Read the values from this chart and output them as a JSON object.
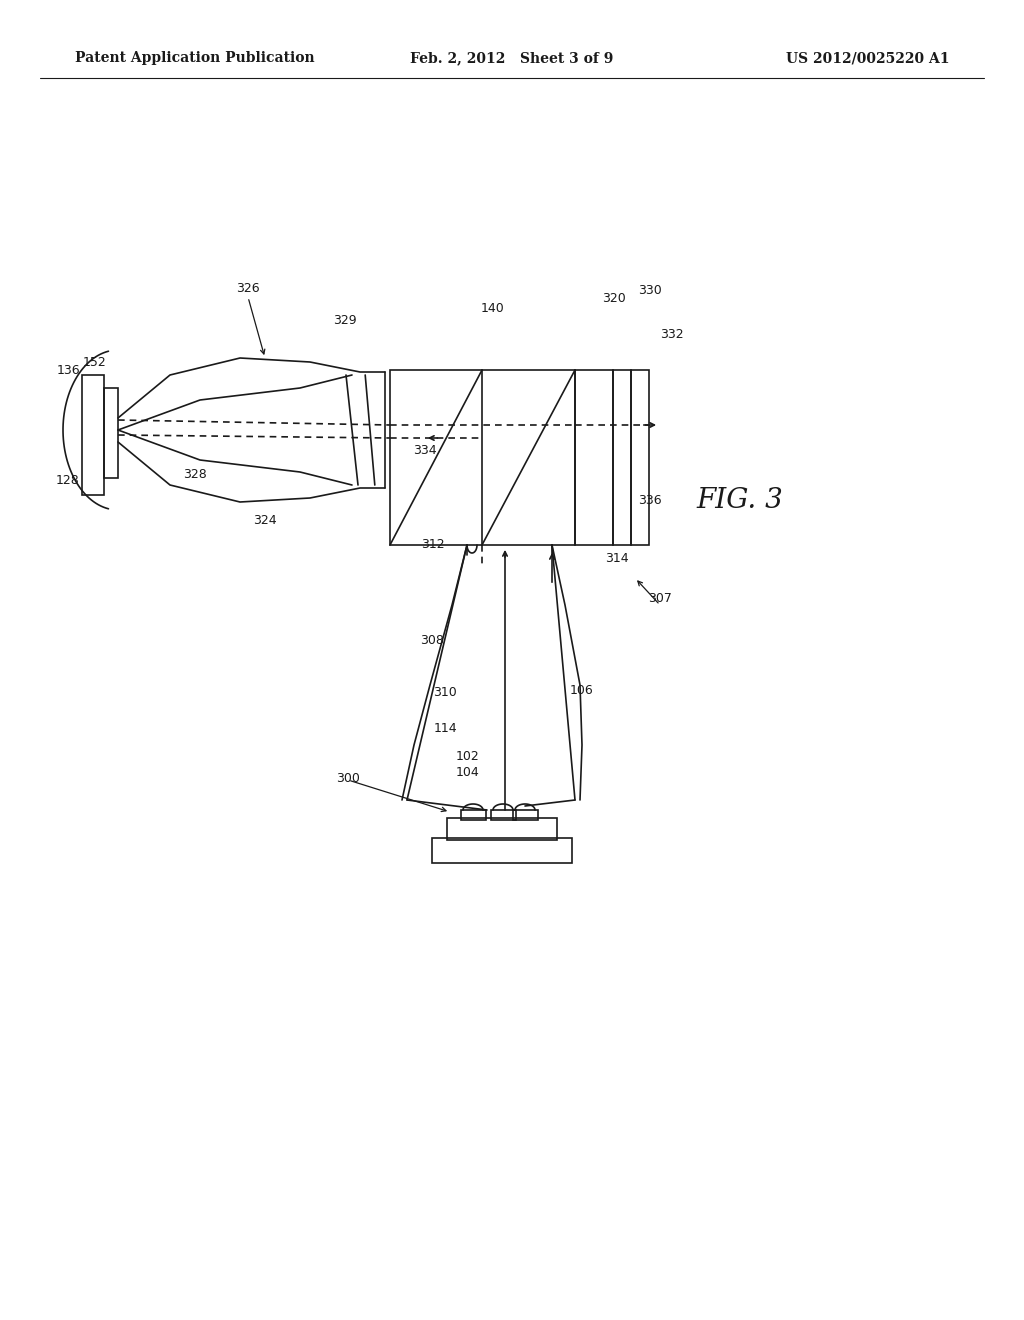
{
  "bg_color": "#ffffff",
  "line_color": "#1a1a1a",
  "header_left": "Patent Application Publication",
  "header_mid": "Feb. 2, 2012   Sheet 3 of 9",
  "header_right": "US 2012/0025220 A1",
  "fig_label": "FIG. 3",
  "lw": 1.2,
  "header_fs": 10,
  "label_fs": 9,
  "fig3_fs": 20
}
